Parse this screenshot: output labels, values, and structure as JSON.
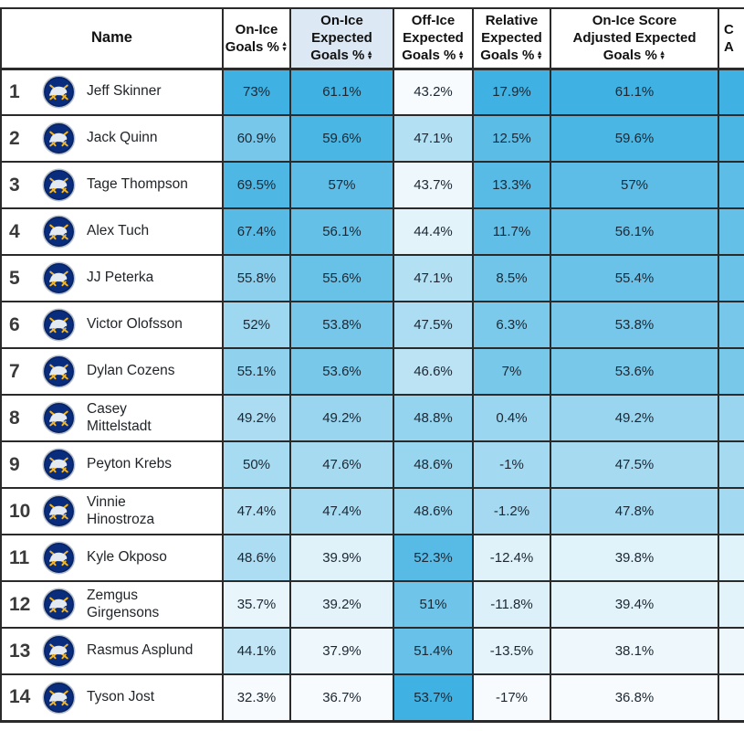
{
  "table": {
    "name_header": "Name",
    "team_logo": "buffalo-sabres-logo",
    "columns": [
      {
        "id": "on-ice-goals",
        "lines": [
          "On-Ice",
          "Goals %"
        ],
        "sorted": false
      },
      {
        "id": "on-ice-expected-goals",
        "lines": [
          "On-Ice",
          "Expected",
          "Goals %"
        ],
        "sorted": true
      },
      {
        "id": "off-ice-expected-goals",
        "lines": [
          "Off-Ice",
          "Expected",
          "Goals %"
        ],
        "sorted": false
      },
      {
        "id": "relative-expected-goals",
        "lines": [
          "Relative",
          "Expected",
          "Goals %"
        ],
        "sorted": false
      },
      {
        "id": "on-ice-score-adjusted-expected-goals",
        "lines": [
          "On-Ice Score",
          "Adjusted Expected",
          "Goals %"
        ],
        "sorted": false
      }
    ],
    "partial_column": {
      "header_lines": [
        "C",
        "A"
      ]
    },
    "rows": [
      {
        "rank": "1",
        "name": "Jeff Skinner",
        "values": [
          "73%",
          "61.1%",
          "43.2%",
          "17.9%",
          "61.1%"
        ]
      },
      {
        "rank": "2",
        "name": "Jack Quinn",
        "values": [
          "60.9%",
          "59.6%",
          "47.1%",
          "12.5%",
          "59.6%"
        ]
      },
      {
        "rank": "3",
        "name": "Tage Thompson",
        "values": [
          "69.5%",
          "57%",
          "43.7%",
          "13.3%",
          "57%"
        ]
      },
      {
        "rank": "4",
        "name": "Alex Tuch",
        "values": [
          "67.4%",
          "56.1%",
          "44.4%",
          "11.7%",
          "56.1%"
        ]
      },
      {
        "rank": "5",
        "name": "JJ Peterka",
        "values": [
          "55.8%",
          "55.6%",
          "47.1%",
          "8.5%",
          "55.4%"
        ]
      },
      {
        "rank": "6",
        "name": "Victor Olofsson",
        "values": [
          "52%",
          "53.8%",
          "47.5%",
          "6.3%",
          "53.8%"
        ]
      },
      {
        "rank": "7",
        "name": "Dylan Cozens",
        "values": [
          "55.1%",
          "53.6%",
          "46.6%",
          "7%",
          "53.6%"
        ]
      },
      {
        "rank": "8",
        "name": "Casey Mittelstadt",
        "values": [
          "49.2%",
          "49.2%",
          "48.8%",
          "0.4%",
          "49.2%"
        ]
      },
      {
        "rank": "9",
        "name": "Peyton Krebs",
        "values": [
          "50%",
          "47.6%",
          "48.6%",
          "-1%",
          "47.5%"
        ]
      },
      {
        "rank": "10",
        "name": "Vinnie Hinostroza",
        "values": [
          "47.4%",
          "47.4%",
          "48.6%",
          "-1.2%",
          "47.8%"
        ]
      },
      {
        "rank": "11",
        "name": "Kyle Okposo",
        "values": [
          "48.6%",
          "39.9%",
          "52.3%",
          "-12.4%",
          "39.8%"
        ]
      },
      {
        "rank": "12",
        "name": "Zemgus Girgensons",
        "values": [
          "35.7%",
          "39.2%",
          "51%",
          "-11.8%",
          "39.4%"
        ]
      },
      {
        "rank": "13",
        "name": "Rasmus Asplund",
        "values": [
          "44.1%",
          "37.9%",
          "51.4%",
          "-13.5%",
          "38.1%"
        ]
      },
      {
        "rank": "14",
        "name": "Tyson Jost",
        "values": [
          "32.3%",
          "36.7%",
          "53.7%",
          "-17%",
          "36.8%"
        ]
      }
    ],
    "colors": {
      "heat_low": "#f7fbfd",
      "heat_high": "#3fb1e2",
      "sorted_header_bg": "#dce8f4",
      "logo_navy": "#092c7c",
      "logo_gold": "#f9b616",
      "logo_silver": "#b9c0c7"
    }
  }
}
